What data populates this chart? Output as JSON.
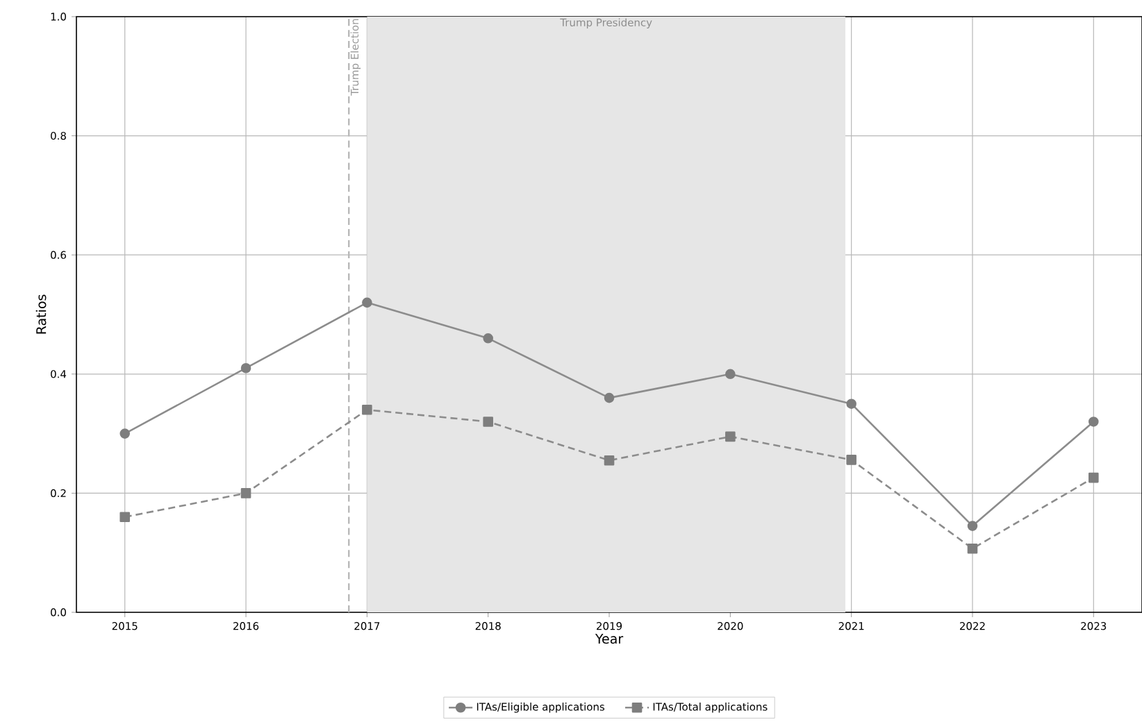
{
  "chart_data": {
    "type": "line",
    "xlabel": "Year",
    "ylabel": "Ratios",
    "x": [
      2015,
      2016,
      2017,
      2018,
      2019,
      2020,
      2021,
      2022,
      2023
    ],
    "series": [
      {
        "name": "ITAs/Eligible applications",
        "color": "#8c8c8c",
        "marker": "circle",
        "line_style": "solid",
        "values": [
          0.3,
          0.41,
          0.52,
          0.46,
          0.36,
          0.4,
          0.35,
          0.145,
          0.32
        ]
      },
      {
        "name": "ITAs/Total applications",
        "color": "#8c8c8c",
        "marker": "square",
        "line_style": "dashed",
        "values": [
          0.16,
          0.2,
          0.34,
          0.32,
          0.255,
          0.295,
          0.256,
          0.107,
          0.226
        ]
      }
    ],
    "xlim": [
      2014.6,
      2023.4
    ],
    "ylim": [
      0,
      1.0
    ],
    "xticks": [
      2015,
      2016,
      2017,
      2018,
      2019,
      2020,
      2021,
      2022,
      2023
    ],
    "yticks": [
      {
        "value": 0,
        "label": "0.0"
      },
      {
        "value": 0.2,
        "label": "0.2"
      },
      {
        "value": 0.4,
        "label": "0.4"
      },
      {
        "value": 0.6,
        "label": "0.6"
      },
      {
        "value": 0.8,
        "label": "0.8"
      },
      {
        "value": 1.0,
        "label": "1.0"
      }
    ],
    "ref_lines": [
      {
        "axis": "x",
        "value": 2016.85,
        "label": "Trump Election",
        "color": "#b8b8b8",
        "line_style": "dashed"
      }
    ],
    "bands": [
      {
        "axis": "x",
        "from": 2017,
        "to": 2020.95,
        "label": "Trump Presidency",
        "color": "#e6e6e6"
      }
    ],
    "grid": true,
    "legend": "bottom"
  }
}
